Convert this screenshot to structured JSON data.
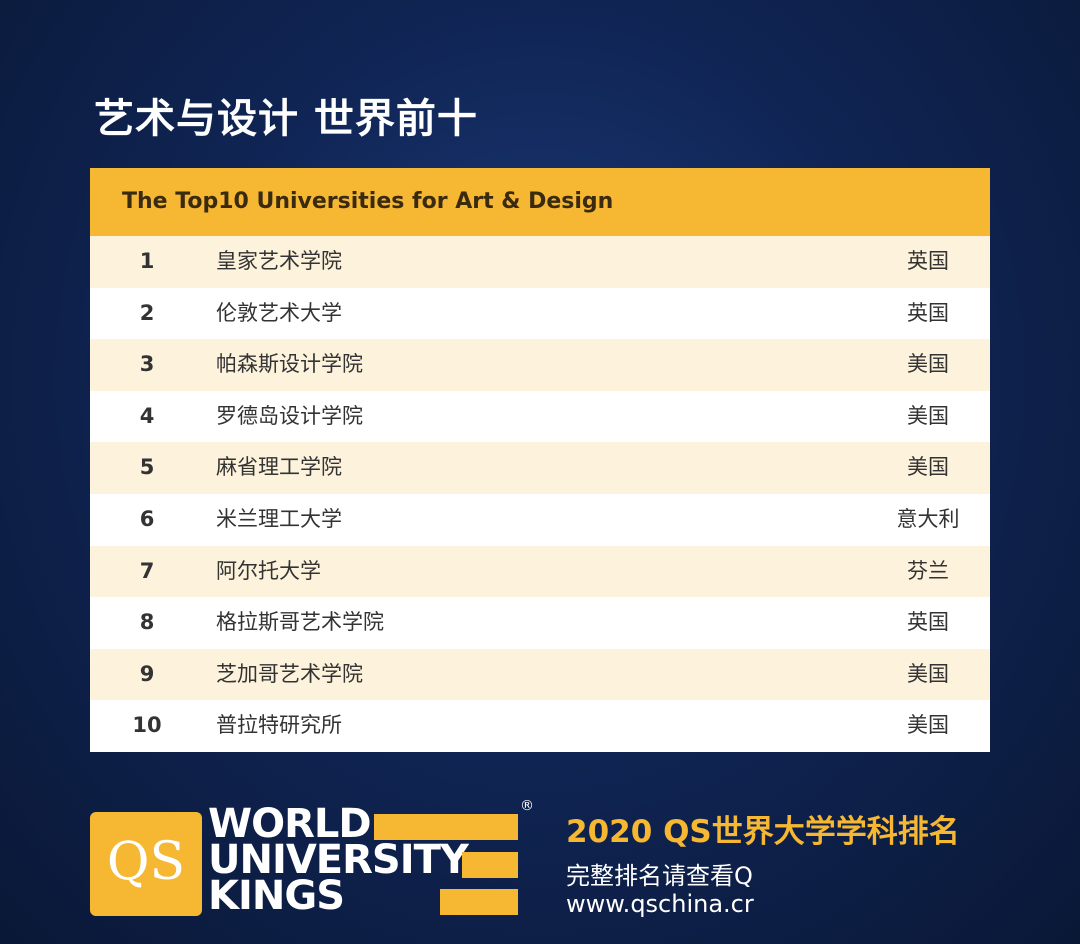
{
  "header": {
    "title": "艺术与设计 世界前十"
  },
  "table": {
    "caption": "The Top10 Universities for Art & Design",
    "rows": [
      [
        "1",
        "皇家艺术学院",
        "英国"
      ],
      [
        "2",
        "伦敦艺术大学",
        "英国"
      ],
      [
        "3",
        "帕森斯设计学院",
        "美国"
      ],
      [
        "4",
        "罗德岛设计学院",
        "美国"
      ],
      [
        "5",
        "麻省理工学院",
        "美国"
      ],
      [
        "6",
        "米兰理工大学",
        "意大利"
      ],
      [
        "7",
        "阿尔托大学",
        "芬兰"
      ],
      [
        "8",
        "格拉斯哥艺术学院",
        "英国"
      ],
      [
        "9",
        "芝加哥艺术学院",
        "美国"
      ],
      [
        "10",
        "普拉特研究所",
        "美国"
      ]
    ]
  },
  "footer": {
    "logo_mark": "QS",
    "logo_lines": [
      "WORLD",
      "UNIVERSITY",
      "KINGS"
    ],
    "registered": "®",
    "headline": "2020 QS世界大学学科排名",
    "lines": [
      "完整排名请查看Q",
      "www.qschina.cr"
    ]
  }
}
